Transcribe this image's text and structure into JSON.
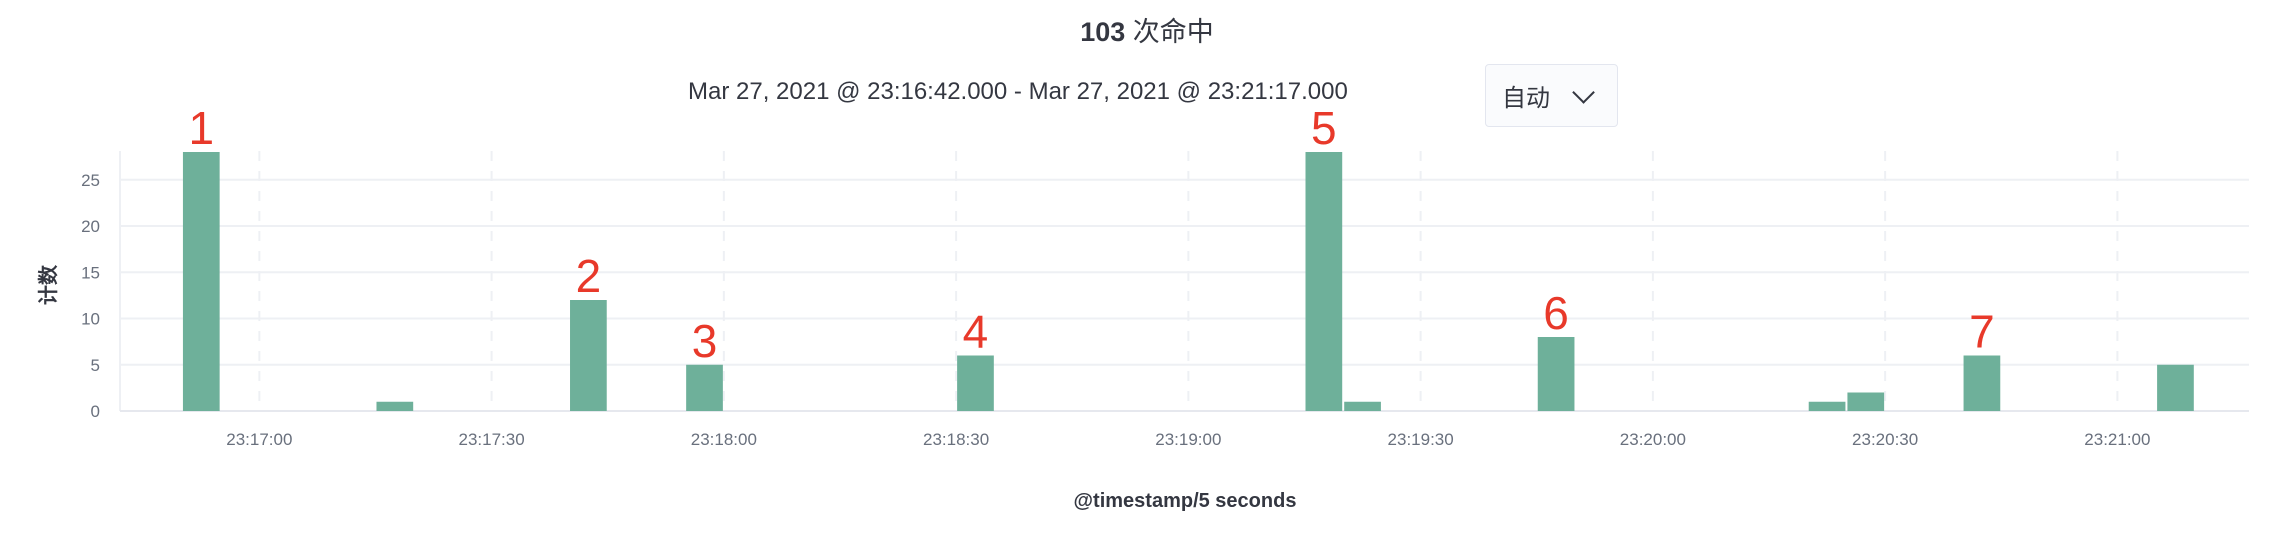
{
  "header": {
    "hits_count": "103",
    "hits_label": "次命中",
    "time_range": "Mar 27, 2021 @ 23:16:42.000 - Mar 27, 2021 @ 23:21:17.000",
    "interval_select": "自动",
    "interval_icon": "chevron-down-icon"
  },
  "chart_data": {
    "type": "bar",
    "xlabel": "@timestamp/5 seconds",
    "ylabel": "计数",
    "xlim": [
      "23:16:42",
      "23:21:17"
    ],
    "ylim": [
      0,
      28
    ],
    "bucket_seconds": 5,
    "grid": true,
    "bar_color": "#6eb09a",
    "x_ticks": [
      "23:17:00",
      "23:17:30",
      "23:18:00",
      "23:18:30",
      "23:19:00",
      "23:19:30",
      "23:20:00",
      "23:20:30",
      "23:21:00"
    ],
    "y_ticks": [
      "0",
      "5",
      "10",
      "15",
      "20",
      "25"
    ],
    "x": [
      "23:16:50",
      "23:17:15",
      "23:17:40",
      "23:17:55",
      "23:18:30",
      "23:19:15",
      "23:19:20",
      "23:19:45",
      "23:20:20",
      "23:20:25",
      "23:20:40",
      "23:21:05"
    ],
    "values": [
      28,
      1,
      12,
      5,
      6,
      28,
      1,
      8,
      1,
      2,
      6,
      5
    ],
    "annotations": [
      {
        "text": "1",
        "x": "23:16:50",
        "color": "#e8392a"
      },
      {
        "text": "2",
        "x": "23:17:40",
        "color": "#e8392a"
      },
      {
        "text": "3",
        "x": "23:17:55",
        "color": "#e8392a"
      },
      {
        "text": "4",
        "x": "23:18:30",
        "color": "#e8392a"
      },
      {
        "text": "5",
        "x": "23:19:15",
        "color": "#e8392a"
      },
      {
        "text": "6",
        "x": "23:19:45",
        "color": "#e8392a"
      },
      {
        "text": "7",
        "x": "23:20:40",
        "color": "#e8392a"
      }
    ]
  }
}
